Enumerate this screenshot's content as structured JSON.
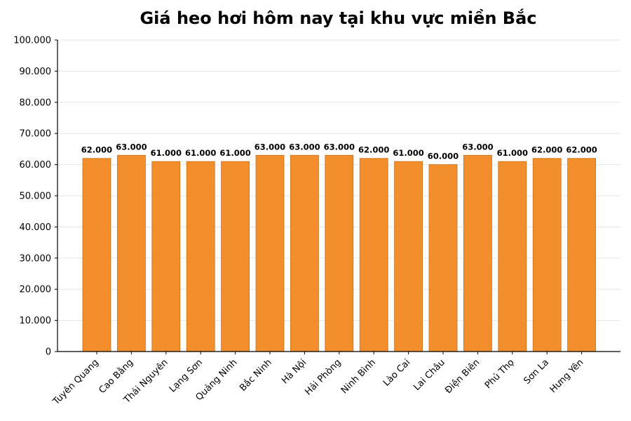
{
  "chart_data": {
    "type": "bar",
    "title": "Giá heo hơi hôm nay tại khu vực miền Bắc",
    "xlabel": "",
    "ylabel": "",
    "categories": [
      "Tuyên Quang",
      "Cao Bằng",
      "Thái Nguyên",
      "Lạng Sơn",
      "Quảng Ninh",
      "Bắc Ninh",
      "Hà Nội",
      "Hải Phòng",
      "Ninh Bình",
      "Lào Cai",
      "Lai Châu",
      "Điện Biên",
      "Phú Thọ",
      "Sơn La",
      "Hưng Yên"
    ],
    "values": [
      62000,
      63000,
      61000,
      61000,
      61000,
      63000,
      63000,
      63000,
      62000,
      61000,
      60000,
      63000,
      61000,
      62000,
      62000
    ],
    "value_labels": [
      "62.000",
      "63.000",
      "61.000",
      "61.000",
      "61.000",
      "63.000",
      "63.000",
      "63.000",
      "62.000",
      "61.000",
      "60.000",
      "63.000",
      "61.000",
      "62.000",
      "62.000"
    ],
    "ylim": [
      0,
      100000
    ],
    "yticks": [
      0,
      10000,
      20000,
      30000,
      40000,
      50000,
      60000,
      70000,
      80000,
      90000,
      100000
    ],
    "ytick_labels": [
      "0",
      "10.000",
      "20.000",
      "30.000",
      "40.000",
      "50.000",
      "60.000",
      "70.000",
      "80.000",
      "90.000",
      "100.000"
    ],
    "grid": true,
    "legend": null,
    "colors": {
      "bar_fill": "#f28e2b",
      "bar_edge": "#c8701a",
      "grid": "#e6e6e6",
      "axis": "#000000"
    }
  }
}
